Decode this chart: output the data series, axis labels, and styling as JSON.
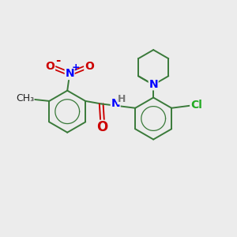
{
  "bg_color": "#ececec",
  "bond_color": "#3a7a3a",
  "bond_width": 1.4,
  "font_size": 10,
  "figsize": [
    3.0,
    3.0
  ],
  "dpi": 100,
  "xlim": [
    0,
    10
  ],
  "ylim": [
    0,
    10
  ]
}
